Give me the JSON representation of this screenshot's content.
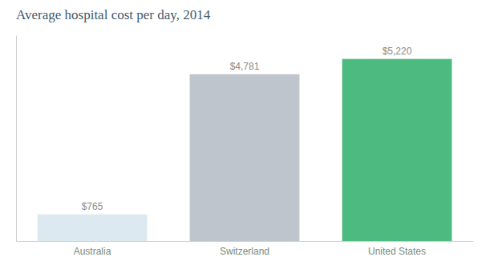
{
  "chart_data": {
    "type": "bar",
    "title": "Average hospital cost per day, 2014",
    "categories": [
      "Australia",
      "Switzerland",
      "United States"
    ],
    "values": [
      765,
      4781,
      5220
    ],
    "value_labels": [
      "$765",
      "$4,781",
      "$5,220"
    ],
    "colors": [
      "#dce9f0",
      "#bfc5cc",
      "#4dba7f"
    ],
    "ylim": [
      0,
      5900
    ],
    "data_labels": true,
    "tick_labels": "x",
    "grid": false
  }
}
